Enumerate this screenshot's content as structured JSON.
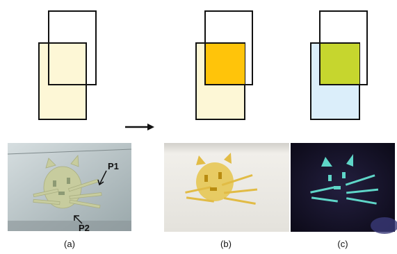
{
  "panels": {
    "a": {
      "caption": "(a)",
      "annotations": {
        "p1": "P1",
        "p2": "P2"
      },
      "film_color": "#fdf7d6"
    },
    "b": {
      "caption": "(b)",
      "film_color": "#fdf7d6",
      "overlap_color": "#ffc40a"
    },
    "c": {
      "caption": "(c)",
      "film_color": "#dbeefa",
      "overlap_color": "#c6d62e"
    }
  },
  "colors": {
    "outline": "#111111",
    "photo_a_bg": "#b9c4c6",
    "photo_b_bg": "#e9e7e2",
    "photo_c_bg": "#16132b",
    "cat_a": "#c7cc9e",
    "cat_b": "#e0b42a",
    "cat_c": "#5fd6c8"
  },
  "arrow_icon": "right-arrow-icon"
}
